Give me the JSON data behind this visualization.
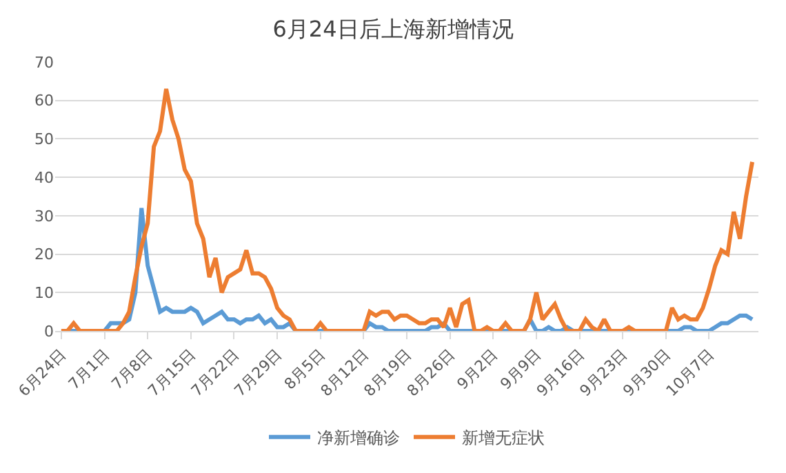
{
  "chart_data": {
    "type": "line",
    "title": "6月24日后上海新增情况",
    "x": [
      "--06-24",
      "--06-25",
      "--06-26",
      "--06-27",
      "--06-28",
      "--06-29",
      "--06-30",
      "--07-01",
      "--07-02",
      "--07-03",
      "--07-04",
      "--07-05",
      "--07-06",
      "--07-07",
      "--07-08",
      "--07-09",
      "--07-10",
      "--07-11",
      "--07-12",
      "--07-13",
      "--07-14",
      "--07-15",
      "--07-16",
      "--07-17",
      "--07-18",
      "--07-19",
      "--07-20",
      "--07-21",
      "--07-22",
      "--07-23",
      "--07-24",
      "--07-25",
      "--07-26",
      "--07-27",
      "--07-28",
      "--07-29",
      "--07-30",
      "--07-31",
      "--08-01",
      "--08-02",
      "--08-03",
      "--08-04",
      "--08-05",
      "--08-06",
      "--08-07",
      "--08-08",
      "--08-09",
      "--08-10",
      "--08-11",
      "--08-12",
      "--08-13",
      "--08-14",
      "--08-15",
      "--08-16",
      "--08-17",
      "--08-18",
      "--08-19",
      "--08-20",
      "--08-21",
      "--08-22",
      "--08-23",
      "--08-24",
      "--08-25",
      "--08-26",
      "--08-27",
      "--08-28",
      "--08-29",
      "--08-30",
      "--08-31",
      "--09-01",
      "--09-02",
      "--09-03",
      "--09-04",
      "--09-05",
      "--09-06",
      "--09-07",
      "--09-08",
      "--09-09",
      "--09-10",
      "--09-11",
      "--09-12",
      "--09-13",
      "--09-14",
      "--09-15",
      "--09-16",
      "--09-17",
      "--09-18",
      "--09-19",
      "--09-20",
      "--09-21",
      "--09-22",
      "--09-23",
      "--09-24",
      "--09-25",
      "--09-26",
      "--09-27",
      "--09-28",
      "--09-29",
      "--09-30",
      "--10-01",
      "--10-02",
      "--10-03",
      "--10-04",
      "--10-05",
      "--10-06",
      "--10-07",
      "--10-08",
      "--10-09",
      "--10-10",
      "--10-11",
      "--10-12",
      "--10-13",
      "--10-14"
    ],
    "series": [
      {
        "name": "净新增确诊",
        "color": "#5b9bd5",
        "values": [
          0,
          0,
          0,
          0,
          0,
          0,
          0,
          0,
          2,
          2,
          2,
          3,
          10,
          32,
          17,
          11,
          5,
          6,
          5,
          5,
          5,
          6,
          5,
          2,
          3,
          4,
          5,
          3,
          3,
          2,
          3,
          3,
          4,
          2,
          3,
          1,
          1,
          2,
          0,
          0,
          0,
          0,
          0,
          0,
          0,
          0,
          0,
          0,
          0,
          0,
          2,
          1,
          1,
          0,
          0,
          0,
          0,
          0,
          0,
          0,
          1,
          1,
          2,
          0,
          0,
          0,
          0,
          0,
          0,
          0,
          0,
          0,
          0,
          0,
          0,
          0,
          3,
          0,
          0,
          1,
          0,
          0,
          1,
          0,
          0,
          0,
          0,
          0,
          0,
          0,
          0,
          0,
          0,
          0,
          0,
          0,
          0,
          0,
          0,
          0,
          0,
          1,
          1,
          0,
          0,
          0,
          1,
          2,
          2,
          3,
          4,
          4,
          3
        ]
      },
      {
        "name": "新增无症状",
        "color": "#ed7d31",
        "values": [
          0,
          0,
          2,
          0,
          0,
          0,
          0,
          0,
          0,
          0,
          2,
          5,
          14,
          22,
          28,
          48,
          52,
          63,
          55,
          50,
          42,
          39,
          28,
          24,
          14,
          19,
          10,
          14,
          15,
          16,
          21,
          15,
          15,
          14,
          11,
          6,
          4,
          3,
          0,
          0,
          0,
          0,
          2,
          0,
          0,
          0,
          0,
          0,
          0,
          0,
          5,
          4,
          5,
          5,
          3,
          4,
          4,
          3,
          2,
          2,
          3,
          3,
          1,
          6,
          1,
          7,
          8,
          0,
          0,
          1,
          0,
          0,
          2,
          0,
          0,
          0,
          3,
          10,
          3,
          5,
          7,
          3,
          0,
          0,
          0,
          3,
          1,
          0,
          3,
          0,
          0,
          0,
          1,
          0,
          0,
          0,
          0,
          0,
          0,
          6,
          3,
          4,
          3,
          3,
          6,
          11,
          17,
          21,
          20,
          31,
          24,
          35,
          44
        ]
      }
    ],
    "xlim": [
      "--06-23",
      "--10-15"
    ],
    "xticks": [
      {
        "value": "--06-24",
        "label": "6月24日"
      },
      {
        "value": "--07-01",
        "label": "7月1日"
      },
      {
        "value": "--07-08",
        "label": "7月8日"
      },
      {
        "value": "--07-15",
        "label": "7月15日"
      },
      {
        "value": "--07-22",
        "label": "7月22日"
      },
      {
        "value": "--07-29",
        "label": "7月29日"
      },
      {
        "value": "--08-05",
        "label": "8月5日"
      },
      {
        "value": "--08-12",
        "label": "8月12日"
      },
      {
        "value": "--08-19",
        "label": "8月19日"
      },
      {
        "value": "--08-26",
        "label": "8月26日"
      },
      {
        "value": "--09-02",
        "label": "9月2日"
      },
      {
        "value": "--09-09",
        "label": "9月9日"
      },
      {
        "value": "--09-16",
        "label": "9月16日"
      },
      {
        "value": "--09-23",
        "label": "9月23日"
      },
      {
        "value": "--09-30",
        "label": "9月30日"
      },
      {
        "value": "--10-07",
        "label": "10月7日"
      }
    ],
    "ylim": [
      0,
      70
    ],
    "yticks": [
      0,
      10,
      20,
      30,
      40,
      50,
      60,
      70
    ],
    "grid": "y",
    "legend": "bottom",
    "marker": "none",
    "line_style": "solid"
  }
}
